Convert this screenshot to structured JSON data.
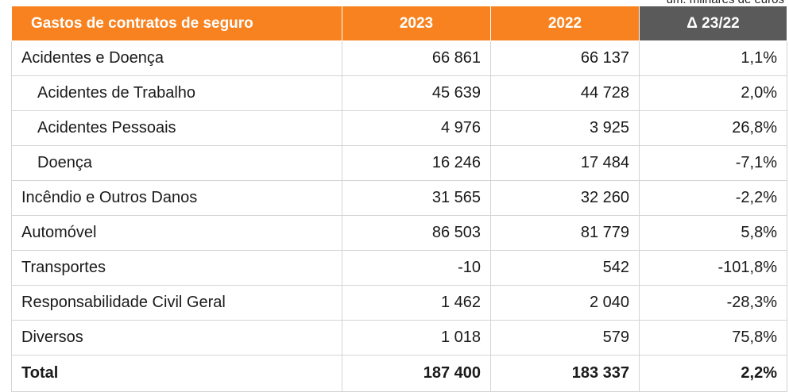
{
  "unit_note": "um: milhares de euros",
  "table": {
    "headers": {
      "label": "Gastos de contratos de seguro",
      "year1": "2023",
      "year2": "2022",
      "delta": "Δ 23/22"
    },
    "rows": [
      {
        "label": "Acidentes e Doença",
        "y2023": "66 861",
        "y2022": "66 137",
        "delta": "1,1%",
        "sub": false
      },
      {
        "label": "Acidentes de Trabalho",
        "y2023": "45 639",
        "y2022": "44 728",
        "delta": "2,0%",
        "sub": true
      },
      {
        "label": "Acidentes Pessoais",
        "y2023": "4 976",
        "y2022": "3 925",
        "delta": "26,8%",
        "sub": true
      },
      {
        "label": "Doença",
        "y2023": "16 246",
        "y2022": "17 484",
        "delta": "-7,1%",
        "sub": true
      },
      {
        "label": "Incêndio e Outros Danos",
        "y2023": "31 565",
        "y2022": "32 260",
        "delta": "-2,2%",
        "sub": false
      },
      {
        "label": "Automóvel",
        "y2023": "86 503",
        "y2022": "81 779",
        "delta": "5,8%",
        "sub": false
      },
      {
        "label": "Transportes",
        "y2023": "-10",
        "y2022": "542",
        "delta": "-101,8%",
        "sub": false
      },
      {
        "label": "Responsabilidade Civil Geral",
        "y2023": "1 462",
        "y2022": "2 040",
        "delta": "-28,3%",
        "sub": false
      },
      {
        "label": "Diversos",
        "y2023": "1 018",
        "y2022": "579",
        "delta": "75,8%",
        "sub": false
      }
    ],
    "total": {
      "label": "Total",
      "y2023": "187 400",
      "y2022": "183 337",
      "delta": "2,2%"
    }
  },
  "colors": {
    "header_orange": "#f7821f",
    "header_dark": "#5a5a5a",
    "grid": "#d4d4d4"
  }
}
